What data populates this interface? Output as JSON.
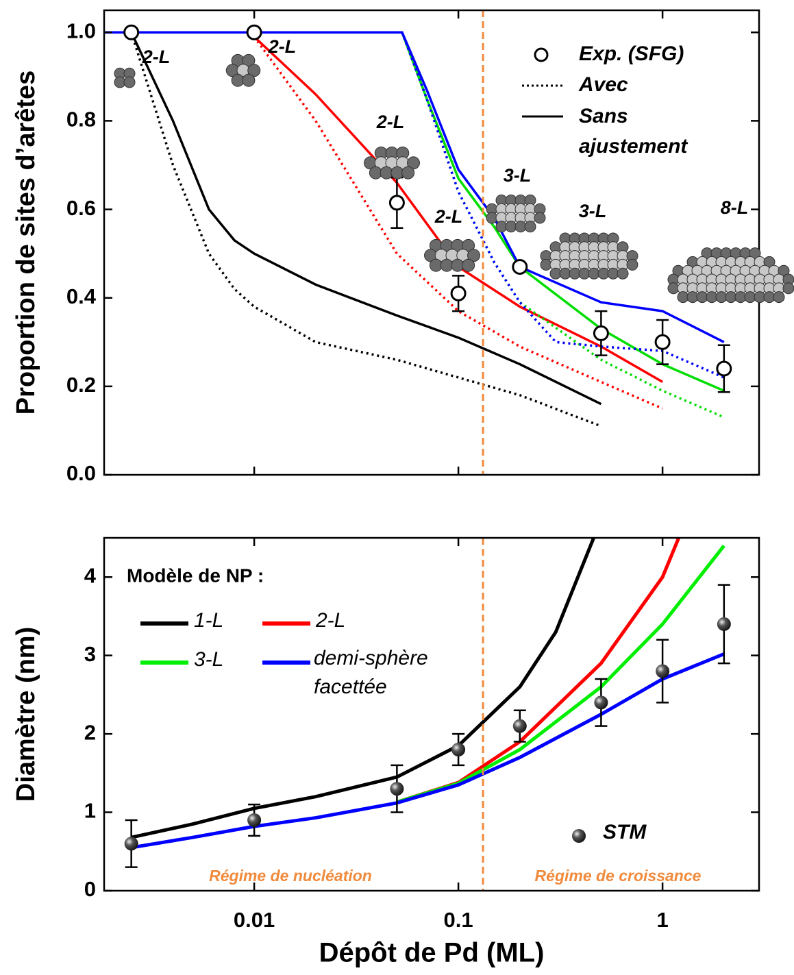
{
  "chart_data": [
    {
      "type": "line",
      "ylabel": "Proportion de sites d’arêtes",
      "xlim": [
        0.00184,
        2.97
      ],
      "log_x": true,
      "ylim": [
        0,
        1.05
      ],
      "yticks": [
        {
          "value": 0,
          "label": "0.0"
        },
        0.2,
        0.4,
        0.6,
        0.8,
        {
          "value": 1,
          "label": "1.0"
        }
      ],
      "divider_x": 0.132,
      "annotations": [
        "2-L",
        "2-L",
        "2-L",
        "2-L",
        "3-L",
        "3-L",
        "8-L"
      ],
      "series": [
        {
          "color": "#000000",
          "dash": false,
          "x": [
            0.0025,
            0.004,
            0.006,
            0.008,
            0.01,
            0.02,
            0.05,
            0.1,
            0.2,
            0.5
          ],
          "values": [
            1.0,
            0.8,
            0.6,
            0.53,
            0.5,
            0.43,
            0.36,
            0.31,
            0.25,
            0.16
          ]
        },
        {
          "color": "#000000",
          "dash": true,
          "x": [
            0.0025,
            0.004,
            0.006,
            0.008,
            0.01,
            0.02,
            0.05,
            0.1,
            0.2,
            0.5
          ],
          "values": [
            1.0,
            0.7,
            0.5,
            0.42,
            0.38,
            0.3,
            0.26,
            0.22,
            0.18,
            0.11
          ]
        },
        {
          "color": "#ff0000",
          "dash": false,
          "x": [
            0.01,
            0.02,
            0.05,
            0.1,
            0.2,
            0.5,
            1
          ],
          "values": [
            0.99,
            0.86,
            0.66,
            0.47,
            0.38,
            0.29,
            0.21
          ]
        },
        {
          "color": "#ff0000",
          "dash": true,
          "x": [
            0.01,
            0.02,
            0.05,
            0.1,
            0.2,
            0.5,
            1
          ],
          "values": [
            0.99,
            0.8,
            0.5,
            0.37,
            0.29,
            0.21,
            0.15
          ]
        },
        {
          "color": "#00dd00",
          "dash": false,
          "x": [
            0.0018,
            0.053,
            0.07,
            0.1,
            0.15,
            0.2,
            0.5,
            1,
            2
          ],
          "values": [
            1.0,
            1.0,
            0.85,
            0.67,
            0.56,
            0.47,
            0.33,
            0.25,
            0.19
          ]
        },
        {
          "color": "#00dd00",
          "dash": true,
          "x": [
            0.053,
            0.07,
            0.1,
            0.15,
            0.2,
            0.5,
            1,
            2
          ],
          "values": [
            1.0,
            0.85,
            0.64,
            0.48,
            0.39,
            0.26,
            0.19,
            0.13
          ]
        },
        {
          "color": "#0000ff",
          "dash": false,
          "x": [
            0.0018,
            0.053,
            0.07,
            0.1,
            0.15,
            0.2,
            0.5,
            1,
            2
          ],
          "values": [
            1.0,
            1.0,
            0.87,
            0.69,
            0.58,
            0.47,
            0.39,
            0.37,
            0.3
          ]
        },
        {
          "color": "#0000ff",
          "dash": true,
          "x": [
            0.053,
            0.07,
            0.1,
            0.15,
            0.2,
            0.3,
            0.5,
            1,
            2
          ],
          "values": [
            1.0,
            0.85,
            0.64,
            0.48,
            0.39,
            0.3,
            0.29,
            0.28,
            0.22
          ]
        }
      ],
      "points": {
        "name": "Exp. (SFG)",
        "x": [
          0.0025,
          0.01,
          0.05,
          0.1,
          0.2,
          0.5,
          1,
          2
        ],
        "values": [
          1.0,
          1.0,
          0.615,
          0.41,
          0.47,
          0.32,
          0.3,
          0.24
        ],
        "errors": [
          null,
          null,
          0.057,
          0.04,
          null,
          0.05,
          0.05,
          0.053
        ]
      },
      "line_styles": [
        {
          "label": "Avec",
          "dash": true
        },
        {
          "label": "Sans ajustement",
          "dash": false
        }
      ]
    },
    {
      "type": "line",
      "ylabel": "Diamètre (nm)",
      "xlabel": "Dépôt de Pd (ML)",
      "xlim": [
        0.00184,
        2.97
      ],
      "log_x": true,
      "xticks": [
        0.01,
        0.1,
        1
      ],
      "ylim": [
        0,
        4.5
      ],
      "yticks": [
        0,
        1,
        2,
        3,
        4
      ],
      "divider_x": 0.132,
      "legend_title": "Modèle de NP :",
      "regions": [
        "Régime de nucléation",
        "Régime de croissance"
      ],
      "series": [
        {
          "name": "1-L",
          "color": "#000000",
          "x": [
            0.0025,
            0.005,
            0.01,
            0.02,
            0.05,
            0.1,
            0.2,
            0.3,
            0.46
          ],
          "values": [
            0.68,
            0.85,
            1.05,
            1.2,
            1.45,
            1.85,
            2.6,
            3.3,
            4.5
          ]
        },
        {
          "name": "2-L",
          "color": "#ff0000",
          "x": [
            0.05,
            0.1,
            0.2,
            0.5,
            1,
            1.2
          ],
          "values": [
            1.13,
            1.38,
            1.9,
            2.9,
            4.0,
            4.5
          ]
        },
        {
          "name": "3-L",
          "color": "#00ee00",
          "x": [
            0.05,
            0.1,
            0.2,
            0.5,
            1,
            2
          ],
          "values": [
            1.13,
            1.37,
            1.8,
            2.6,
            3.4,
            4.4
          ]
        },
        {
          "name": "demi-sphère facettée",
          "color": "#0000ff",
          "x": [
            0.0025,
            0.005,
            0.01,
            0.02,
            0.05,
            0.1,
            0.2,
            0.5,
            1,
            2
          ],
          "values": [
            0.55,
            0.68,
            0.82,
            0.93,
            1.12,
            1.35,
            1.7,
            2.25,
            2.7,
            3.02
          ]
        }
      ],
      "points": {
        "name": "STM",
        "x": [
          0.0025,
          0.01,
          0.05,
          0.1,
          0.2,
          0.5,
          1,
          2
        ],
        "values": [
          0.6,
          0.9,
          1.3,
          1.8,
          2.1,
          2.4,
          2.8,
          3.4
        ],
        "errors": [
          0.3,
          0.2,
          0.3,
          0.2,
          0.2,
          0.3,
          0.4,
          0.5
        ]
      }
    }
  ]
}
